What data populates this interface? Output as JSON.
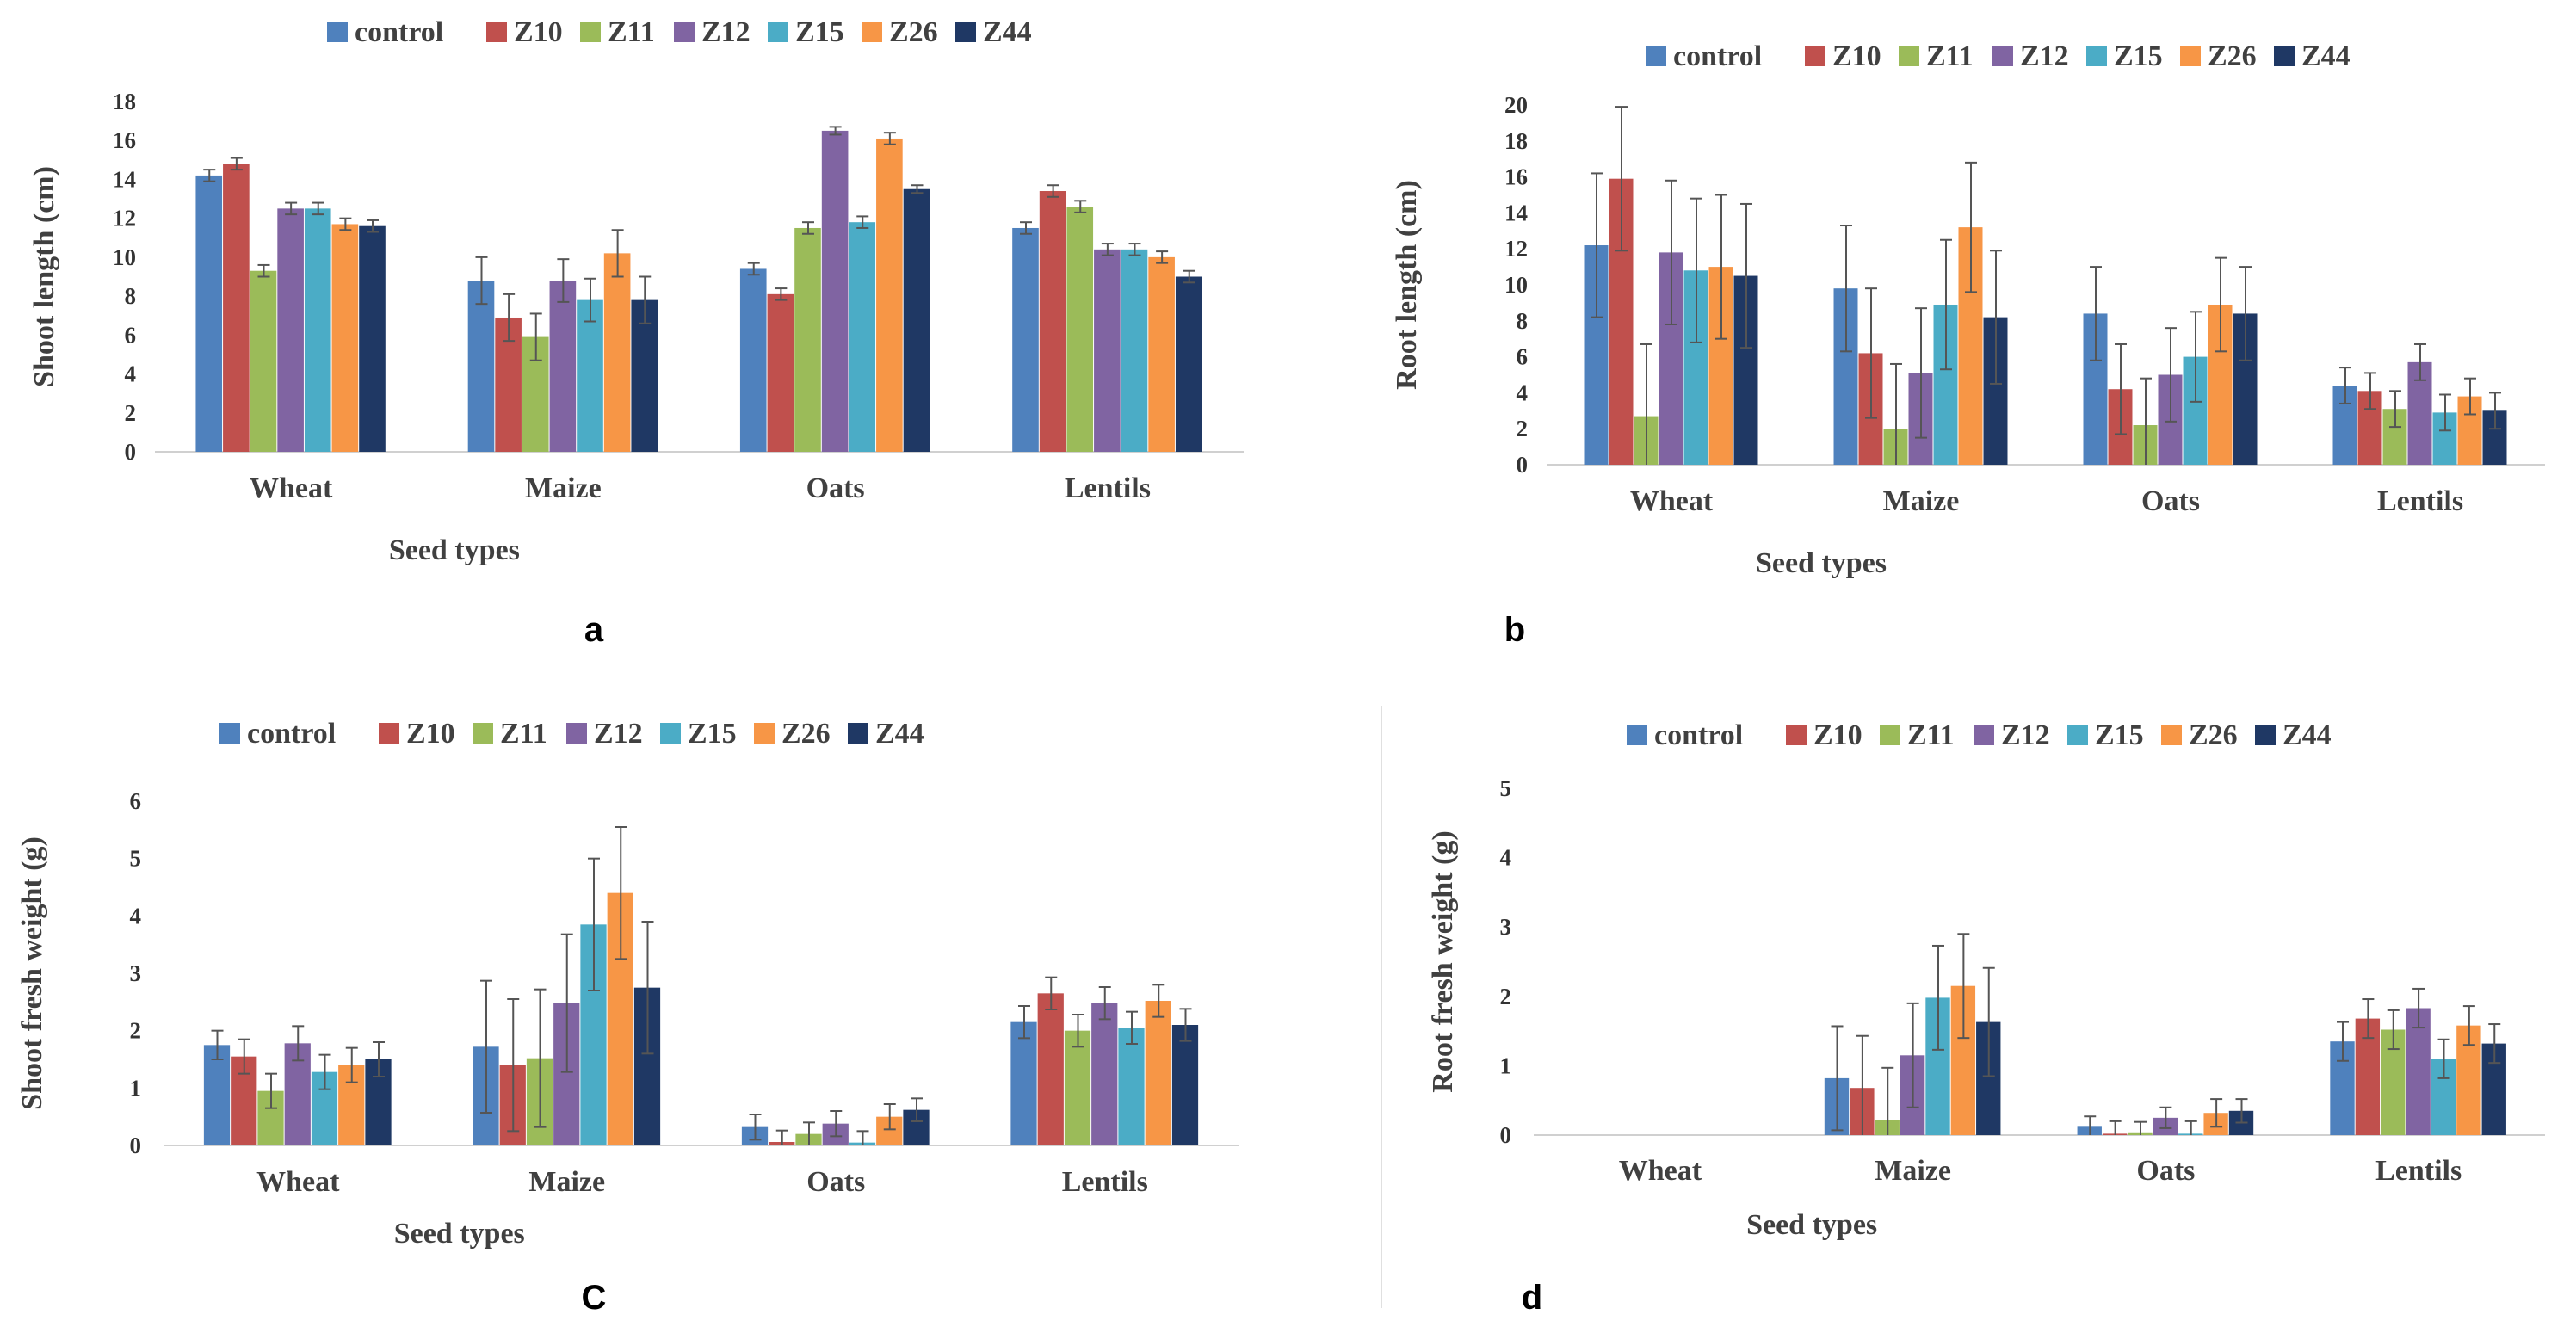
{
  "colors": {
    "control": "#4f81bd",
    "Z10": "#c0504d",
    "Z11": "#9bbb59",
    "Z12": "#8064a2",
    "Z15": "#4bacc6",
    "Z26": "#f79646",
    "Z44": "#1f3864"
  },
  "chart_data": [
    {
      "id": "a",
      "panel_label": "a",
      "type": "bar",
      "title": "",
      "xlabel": "Seed types",
      "ylabel": "Shoot length (cm)",
      "ylim": [
        0,
        18
      ],
      "yticks": [
        "0",
        "2",
        "4",
        "6",
        "8",
        "10",
        "12",
        "14",
        "16",
        "18"
      ],
      "categories": [
        "Wheat",
        "Maize",
        "Oats",
        "Lentils"
      ],
      "legend_position": "top",
      "series": [
        {
          "name": "control",
          "values": [
            14.2,
            8.8,
            9.4,
            11.5
          ],
          "errors": [
            0.3,
            1.2,
            0.3,
            0.3
          ]
        },
        {
          "name": "Z10",
          "values": [
            14.8,
            6.9,
            8.1,
            13.4
          ],
          "errors": [
            0.3,
            1.2,
            0.3,
            0.3
          ]
        },
        {
          "name": "Z11",
          "values": [
            9.3,
            5.9,
            11.5,
            12.6
          ],
          "errors": [
            0.3,
            1.2,
            0.3,
            0.3
          ]
        },
        {
          "name": "Z12",
          "values": [
            12.5,
            8.8,
            16.5,
            10.4
          ],
          "errors": [
            0.3,
            1.1,
            0.2,
            0.3
          ]
        },
        {
          "name": "Z15",
          "values": [
            12.5,
            7.8,
            11.8,
            10.4
          ],
          "errors": [
            0.3,
            1.1,
            0.3,
            0.3
          ]
        },
        {
          "name": "Z26",
          "values": [
            11.7,
            10.2,
            16.1,
            10.0
          ],
          "errors": [
            0.3,
            1.2,
            0.3,
            0.3
          ]
        },
        {
          "name": "Z44",
          "values": [
            11.6,
            7.8,
            13.5,
            9.0
          ],
          "errors": [
            0.3,
            1.2,
            0.2,
            0.3
          ]
        }
      ]
    },
    {
      "id": "b",
      "panel_label": "b",
      "type": "bar",
      "title": "",
      "xlabel": "Seed types",
      "ylabel": "Root length (cm)",
      "ylim": [
        0,
        20
      ],
      "yticks": [
        "0",
        "2",
        "4",
        "6",
        "8",
        "10",
        "12",
        "14",
        "16",
        "18",
        "20"
      ],
      "categories": [
        "Wheat",
        "Maize",
        "Oats",
        "Lentils"
      ],
      "legend_position": "top",
      "series": [
        {
          "name": "control",
          "values": [
            12.2,
            9.8,
            8.4,
            4.4
          ],
          "errors": [
            4.0,
            3.5,
            2.6,
            1.0
          ]
        },
        {
          "name": "Z10",
          "values": [
            15.9,
            6.2,
            4.2,
            4.1
          ],
          "errors": [
            4.0,
            3.6,
            2.5,
            1.0
          ]
        },
        {
          "name": "Z11",
          "values": [
            2.7,
            2.0,
            2.2,
            3.1
          ],
          "errors": [
            4.0,
            3.6,
            2.6,
            1.0
          ]
        },
        {
          "name": "Z12",
          "values": [
            11.8,
            5.1,
            5.0,
            5.7
          ],
          "errors": [
            4.0,
            3.6,
            2.6,
            1.0
          ]
        },
        {
          "name": "Z15",
          "values": [
            10.8,
            8.9,
            6.0,
            2.9
          ],
          "errors": [
            4.0,
            3.6,
            2.5,
            1.0
          ]
        },
        {
          "name": "Z26",
          "values": [
            11.0,
            13.2,
            8.9,
            3.8
          ],
          "errors": [
            4.0,
            3.6,
            2.6,
            1.0
          ]
        },
        {
          "name": "Z44",
          "values": [
            10.5,
            8.2,
            8.4,
            3.0
          ],
          "errors": [
            4.0,
            3.7,
            2.6,
            1.0
          ]
        }
      ]
    },
    {
      "id": "c",
      "panel_label": "C",
      "type": "bar",
      "title": "",
      "xlabel": "Seed types",
      "ylabel": "Shoot fresh weight (g)",
      "ylim": [
        0,
        6
      ],
      "yticks": [
        "0",
        "1",
        "2",
        "3",
        "4",
        "5",
        "6"
      ],
      "categories": [
        "Wheat",
        "Maize",
        "Oats",
        "Lentils"
      ],
      "legend_position": "top",
      "series": [
        {
          "name": "control",
          "values": [
            1.75,
            1.72,
            0.32,
            2.15
          ],
          "errors": [
            0.25,
            1.15,
            0.22,
            0.28
          ]
        },
        {
          "name": "Z10",
          "values": [
            1.55,
            1.4,
            0.06,
            2.65
          ],
          "errors": [
            0.3,
            1.15,
            0.2,
            0.28
          ]
        },
        {
          "name": "Z11",
          "values": [
            0.95,
            1.52,
            0.2,
            2.0
          ],
          "errors": [
            0.3,
            1.2,
            0.2,
            0.28
          ]
        },
        {
          "name": "Z12",
          "values": [
            1.78,
            2.48,
            0.38,
            2.48
          ],
          "errors": [
            0.3,
            1.2,
            0.22,
            0.28
          ]
        },
        {
          "name": "Z15",
          "values": [
            1.28,
            3.85,
            0.05,
            2.05
          ],
          "errors": [
            0.3,
            1.15,
            0.2,
            0.28
          ]
        },
        {
          "name": "Z26",
          "values": [
            1.4,
            4.4,
            0.5,
            2.52
          ],
          "errors": [
            0.3,
            1.15,
            0.22,
            0.28
          ]
        },
        {
          "name": "Z44",
          "values": [
            1.5,
            2.75,
            0.62,
            2.1
          ],
          "errors": [
            0.3,
            1.15,
            0.2,
            0.28
          ]
        }
      ]
    },
    {
      "id": "d",
      "panel_label": "d",
      "type": "bar",
      "title": "",
      "xlabel": "Seed types",
      "ylabel": "Root fresh weight (g)",
      "ylim": [
        0,
        5
      ],
      "yticks": [
        "0",
        "1",
        "2",
        "3",
        "4",
        "5"
      ],
      "categories": [
        "Wheat",
        "Maize",
        "Oats",
        "Lentils"
      ],
      "legend_position": "top",
      "series": [
        {
          "name": "control",
          "values": [
            0,
            0.82,
            0.12,
            1.35
          ],
          "errors": [
            0,
            0.75,
            0.15,
            0.28
          ]
        },
        {
          "name": "Z10",
          "values": [
            0,
            0.68,
            0.02,
            1.68
          ],
          "errors": [
            0,
            0.75,
            0.18,
            0.28
          ]
        },
        {
          "name": "Z11",
          "values": [
            0,
            0.22,
            0.04,
            1.52
          ],
          "errors": [
            0,
            0.75,
            0.15,
            0.28
          ]
        },
        {
          "name": "Z12",
          "values": [
            0,
            1.15,
            0.25,
            1.83
          ],
          "errors": [
            0,
            0.75,
            0.15,
            0.28
          ]
        },
        {
          "name": "Z15",
          "values": [
            0,
            1.98,
            0.02,
            1.1
          ],
          "errors": [
            0,
            0.75,
            0.18,
            0.28
          ]
        },
        {
          "name": "Z26",
          "values": [
            0,
            2.15,
            0.32,
            1.58
          ],
          "errors": [
            0,
            0.75,
            0.2,
            0.28
          ]
        },
        {
          "name": "Z44",
          "values": [
            0,
            1.63,
            0.35,
            1.32
          ],
          "errors": [
            0,
            0.78,
            0.17,
            0.28
          ]
        }
      ]
    }
  ]
}
